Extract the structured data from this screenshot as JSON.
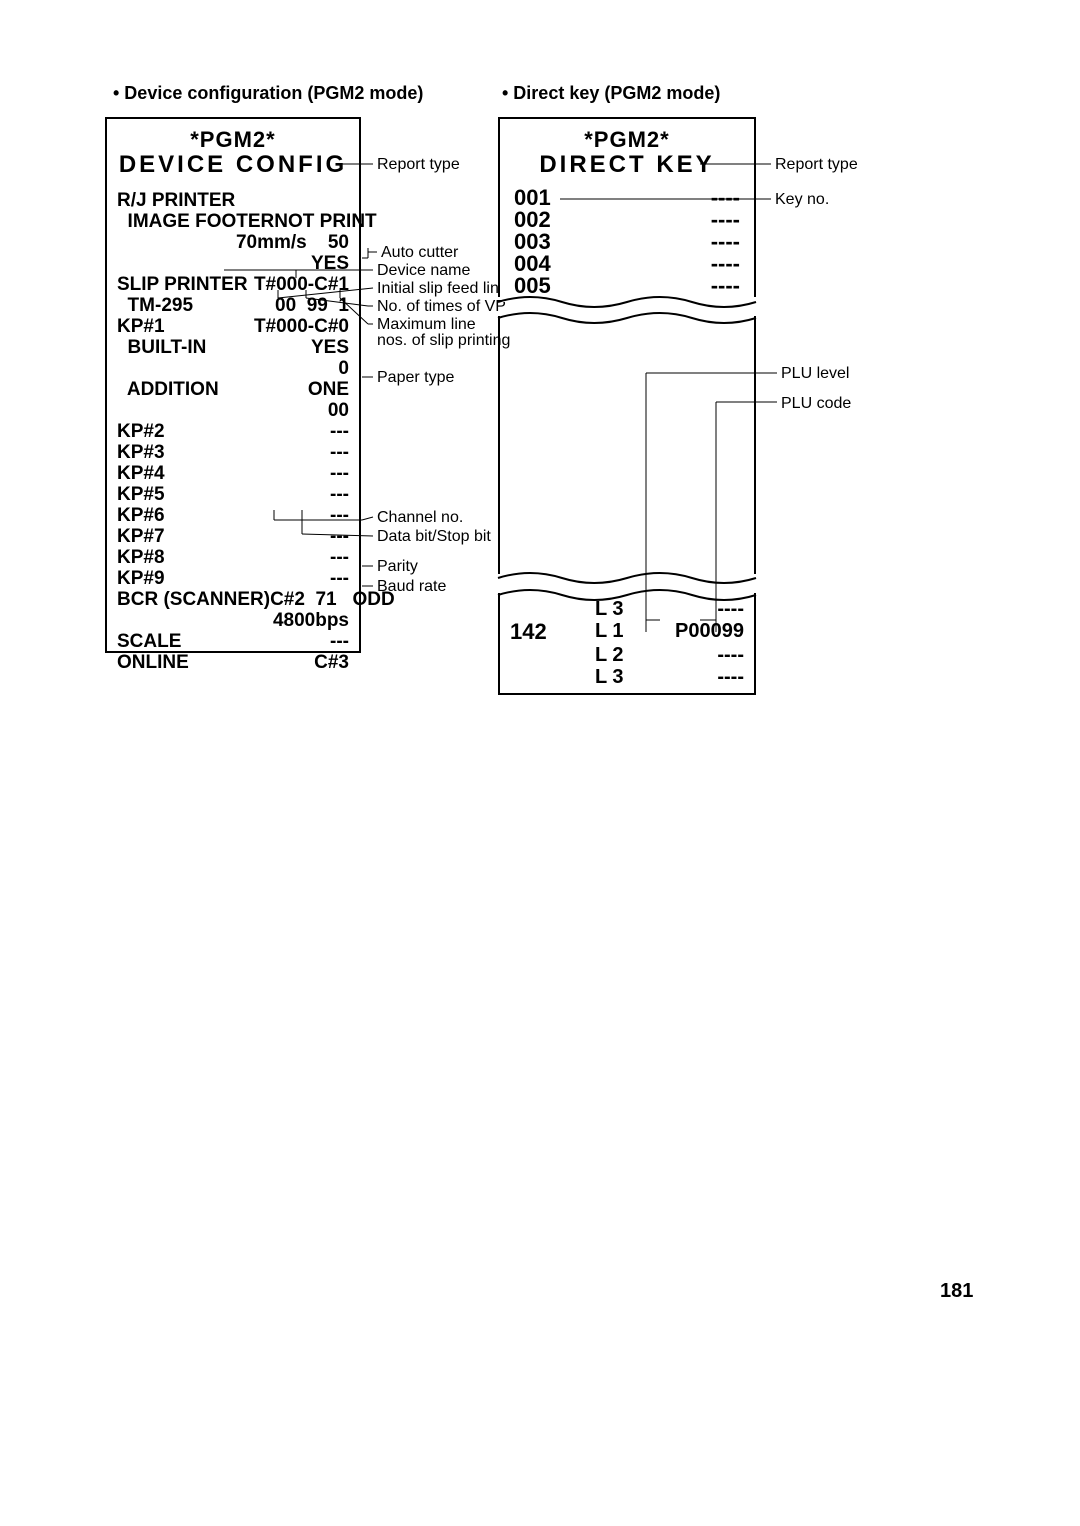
{
  "page_number": "181",
  "left_header": "• Device configuration (PGM2 mode)",
  "right_header": "• Direct key (PGM2 mode)",
  "left_receipt": {
    "title1": "*PGM2*",
    "title2": "DEVICE CONFIG",
    "rows": [
      {
        "left": "R/J PRINTER",
        "right": ""
      },
      {
        "left": "  IMAGE FOOTER",
        "right": "NOT PRINT"
      },
      {
        "left": "",
        "right": "70mm/s    50"
      },
      {
        "left": "",
        "right": "YES"
      },
      {
        "left": "SLIP PRINTER",
        "right": "T#000-C#1"
      },
      {
        "left": "  TM-295",
        "right": "00  99  1"
      },
      {
        "left": "KP#1",
        "right": "T#000-C#0"
      },
      {
        "left": "  BUILT-IN",
        "right": "YES"
      },
      {
        "left": "",
        "right": "0"
      },
      {
        "left": "  ADDITION",
        "right": "ONE"
      },
      {
        "left": "",
        "right": "00"
      },
      {
        "left": "KP#2",
        "right": "---"
      },
      {
        "left": "KP#3",
        "right": "---"
      },
      {
        "left": "KP#4",
        "right": "---"
      },
      {
        "left": "KP#5",
        "right": "---"
      },
      {
        "left": "KP#6",
        "right": "---"
      },
      {
        "left": "KP#7",
        "right": "---"
      },
      {
        "left": "KP#8",
        "right": "---"
      },
      {
        "left": "KP#9",
        "right": "---"
      },
      {
        "left": "BCR (SCANNER)",
        "right": "C#2  71   ODD"
      },
      {
        "left": "",
        "right": "4800bps"
      },
      {
        "left": "SCALE",
        "right": "---"
      },
      {
        "left": "ONLINE",
        "right": "C#3"
      }
    ]
  },
  "right_receipt_top": {
    "title1": "*PGM2*",
    "title2": "DIRECT KEY",
    "keys": [
      {
        "k": "001",
        "v": "----"
      },
      {
        "k": "002",
        "v": "----"
      },
      {
        "k": "003",
        "v": "----"
      },
      {
        "k": "004",
        "v": "----"
      },
      {
        "k": "005",
        "v": "----"
      }
    ]
  },
  "right_receipt_bottom": {
    "rows": [
      {
        "key": "",
        "lvl": "L 3",
        "code": "----"
      },
      {
        "key": "142",
        "lvl": "L 1",
        "code": "P00099"
      },
      {
        "key": "",
        "lvl": "L 2",
        "code": "----"
      },
      {
        "key": "",
        "lvl": "L 3",
        "code": "----"
      }
    ]
  },
  "left_callouts": {
    "report_type": "Report type",
    "auto_cutter": "Auto cutter",
    "device_name": "Device name",
    "initial_slip": "Initial slip feed line no.",
    "no_times_vp": "No. of times of VP",
    "max_line": "Maximum line",
    "max_line2": "nos. of slip printing",
    "paper_type": "Paper type",
    "channel_no": "Channel no.",
    "data_bit": "Data bit/Stop bit",
    "parity": "Parity",
    "baud_rate": "Baud rate"
  },
  "right_callouts": {
    "report_type": "Report type",
    "key_no": "Key no.",
    "plu_level": "PLU level",
    "plu_code": "PLU code"
  }
}
